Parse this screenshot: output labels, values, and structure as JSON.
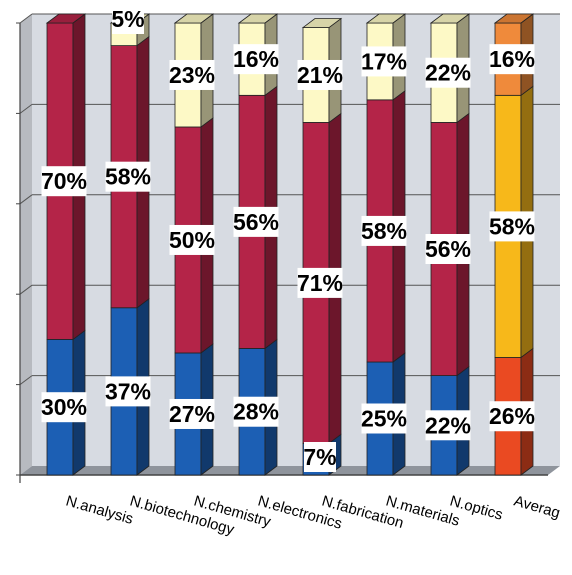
{
  "chart_data": {
    "type": "bar",
    "stacked": true,
    "percent_scale": true,
    "ylim": [
      0,
      100
    ],
    "grid": true,
    "legend": "none",
    "categories": [
      "N.analysis",
      "N.biotechnology",
      "N.chemistry",
      "N.electronics",
      "N.fabrication",
      "N.materials",
      "N.optics",
      "Averag"
    ],
    "series": [
      {
        "values": [
          30,
          37,
          27,
          28,
          7,
          25,
          22,
          26
        ],
        "colors": [
          "#1c5fb4",
          "#1c5fb4",
          "#1c5fb4",
          "#1c5fb4",
          "#1c5fb4",
          "#1c5fb4",
          "#1c5fb4",
          "#ea4a22"
        ]
      },
      {
        "values": [
          70,
          58,
          50,
          56,
          71,
          58,
          56,
          58
        ],
        "colors": [
          "#b42448",
          "#b42448",
          "#b42448",
          "#b42448",
          "#b42448",
          "#b42448",
          "#b42448",
          "#f7b81a"
        ]
      },
      {
        "values": [
          0,
          5,
          23,
          16,
          21,
          17,
          22,
          16
        ],
        "colors": [
          "#fdf9c6",
          "#fdf9c6",
          "#fdf9c6",
          "#fdf9c6",
          "#fdf9c6",
          "#fdf9c6",
          "#fdf9c6",
          "#ef8a3b"
        ]
      }
    ],
    "data_labels": [
      [
        "30%",
        "70%",
        ""
      ],
      [
        "37%",
        "58%",
        "5%"
      ],
      [
        "27%",
        "50%",
        "23%"
      ],
      [
        "28%",
        "56%",
        "16%"
      ],
      [
        "7%",
        "71%",
        "21%"
      ],
      [
        "25%",
        "58%",
        "17%"
      ],
      [
        "22%",
        "56%",
        "22%"
      ],
      [
        "26%",
        "58%",
        "16%"
      ]
    ],
    "background_color": "#d7dbe2",
    "floor_color": "#8f949c"
  }
}
